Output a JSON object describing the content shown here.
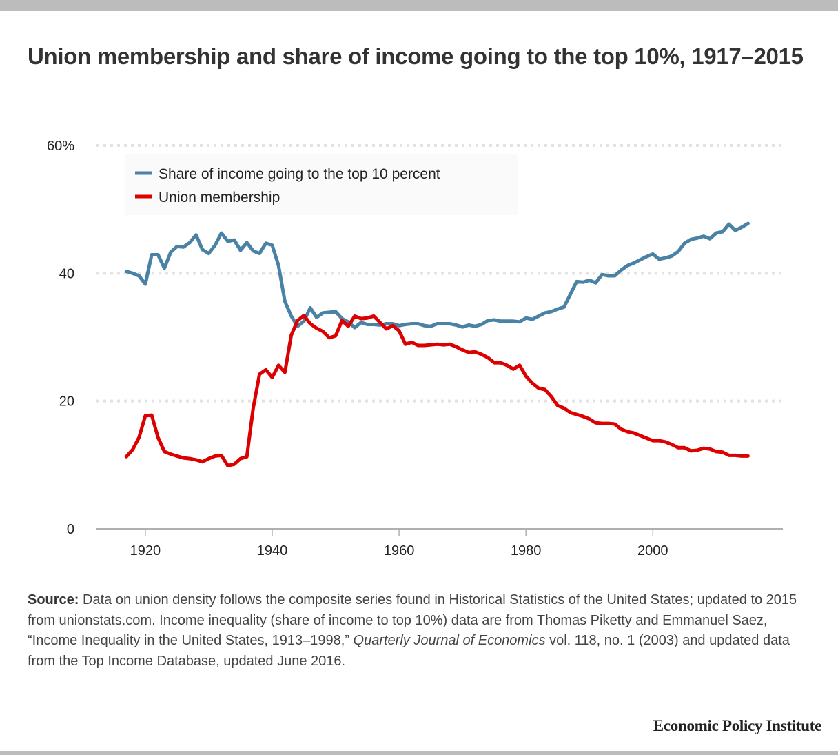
{
  "title": "Union membership and share of income going to the top 10%, 1917–2015",
  "source": {
    "label": "Source:",
    "text_part1": " Data on union density follows the composite series found in Historical Statistics of the United States; updated to 2015 from unionstats.com. Income inequality (share of income to top 10%) data are from Thomas Piketty and Emmanuel Saez, “Income Inequality in the United States, 1913–1998,” ",
    "journal": "Quarterly Journal of Economics",
    "text_part2": " vol. 118, no. 1 (2003) and updated data from the Top Income Database, updated June 2016."
  },
  "brand": "Economic Policy Institute",
  "chart_data": {
    "type": "line",
    "title": "Union membership and share of income going to the top 10%, 1917–2015",
    "xlabel": "",
    "ylabel": "",
    "xlim": [
      1912.3,
      2020.5
    ],
    "ylim": [
      0,
      60
    ],
    "x_ticks": [
      1920,
      1940,
      1960,
      1980,
      2000
    ],
    "x_tick_labels": [
      "1920",
      "1940",
      "1960",
      "1980",
      "2000"
    ],
    "y_ticks": [
      0,
      20,
      40,
      60
    ],
    "y_tick_labels": [
      "0",
      "20",
      "40",
      "60%"
    ],
    "grid": "horizontal dotted",
    "legend_position": "top-left",
    "x": [
      1917,
      1918,
      1919,
      1920,
      1921,
      1922,
      1923,
      1924,
      1925,
      1926,
      1927,
      1928,
      1929,
      1930,
      1931,
      1932,
      1933,
      1934,
      1935,
      1936,
      1937,
      1938,
      1939,
      1940,
      1941,
      1942,
      1943,
      1944,
      1945,
      1946,
      1947,
      1948,
      1949,
      1950,
      1951,
      1952,
      1953,
      1954,
      1955,
      1956,
      1957,
      1958,
      1959,
      1960,
      1961,
      1962,
      1963,
      1964,
      1965,
      1966,
      1967,
      1968,
      1969,
      1970,
      1971,
      1972,
      1973,
      1974,
      1975,
      1976,
      1977,
      1978,
      1979,
      1980,
      1981,
      1982,
      1983,
      1984,
      1985,
      1986,
      1987,
      1988,
      1989,
      1990,
      1991,
      1992,
      1993,
      1994,
      1995,
      1996,
      1997,
      1998,
      1999,
      2000,
      2001,
      2002,
      2003,
      2004,
      2005,
      2006,
      2007,
      2008,
      2009,
      2010,
      2011,
      2012,
      2013,
      2014,
      2015
    ],
    "series": [
      {
        "name": "Share of income going to the top 10 percent",
        "color": "#4a82a6",
        "values": [
          40.3,
          40.0,
          39.6,
          38.3,
          42.9,
          42.9,
          40.8,
          43.3,
          44.2,
          44.1,
          44.8,
          46.0,
          43.7,
          43.1,
          44.4,
          46.3,
          45.0,
          45.2,
          43.6,
          44.8,
          43.5,
          43.1,
          44.7,
          44.4,
          41.2,
          35.6,
          33.3,
          31.7,
          32.5,
          34.6,
          33.1,
          33.8,
          33.9,
          34.0,
          32.9,
          32.4,
          31.5,
          32.3,
          32.0,
          32.0,
          31.9,
          32.1,
          32.1,
          31.8,
          32.0,
          32.1,
          32.1,
          31.8,
          31.7,
          32.1,
          32.1,
          32.1,
          31.9,
          31.6,
          31.9,
          31.7,
          32.0,
          32.6,
          32.7,
          32.5,
          32.5,
          32.5,
          32.4,
          33.0,
          32.8,
          33.3,
          33.8,
          34.0,
          34.4,
          34.7,
          36.7,
          38.7,
          38.6,
          38.9,
          38.5,
          39.8,
          39.6,
          39.6,
          40.5,
          41.2,
          41.6,
          42.1,
          42.6,
          43.0,
          42.2,
          42.4,
          42.7,
          43.4,
          44.7,
          45.3,
          45.5,
          45.8,
          45.4,
          46.3,
          46.5,
          47.7,
          46.7,
          47.2,
          47.8
        ]
      },
      {
        "name": "Union membership",
        "color": "#dd0000",
        "values": [
          11.3,
          12.4,
          14.3,
          17.7,
          17.8,
          14.3,
          12.1,
          11.7,
          11.4,
          11.1,
          11.0,
          10.8,
          10.5,
          11.0,
          11.4,
          11.5,
          9.9,
          10.1,
          11.0,
          11.3,
          18.9,
          24.2,
          24.9,
          23.7,
          25.6,
          24.5,
          30.3,
          32.6,
          33.4,
          32.1,
          31.4,
          30.9,
          29.9,
          30.2,
          32.6,
          31.7,
          33.3,
          32.9,
          33.0,
          33.3,
          32.3,
          31.3,
          31.8,
          31.0,
          28.9,
          29.2,
          28.7,
          28.7,
          28.8,
          28.9,
          28.8,
          28.9,
          28.5,
          28.0,
          27.6,
          27.7,
          27.3,
          26.8,
          26.0,
          26.0,
          25.6,
          25.0,
          25.6,
          23.9,
          22.8,
          22.0,
          21.8,
          20.7,
          19.3,
          18.9,
          18.2,
          17.9,
          17.6,
          17.2,
          16.6,
          16.5,
          16.5,
          16.4,
          15.6,
          15.2,
          15.0,
          14.6,
          14.2,
          13.8,
          13.8,
          13.6,
          13.2,
          12.7,
          12.7,
          12.2,
          12.3,
          12.6,
          12.5,
          12.1,
          12.0,
          11.5,
          11.5,
          11.4,
          11.4
        ]
      }
    ]
  }
}
